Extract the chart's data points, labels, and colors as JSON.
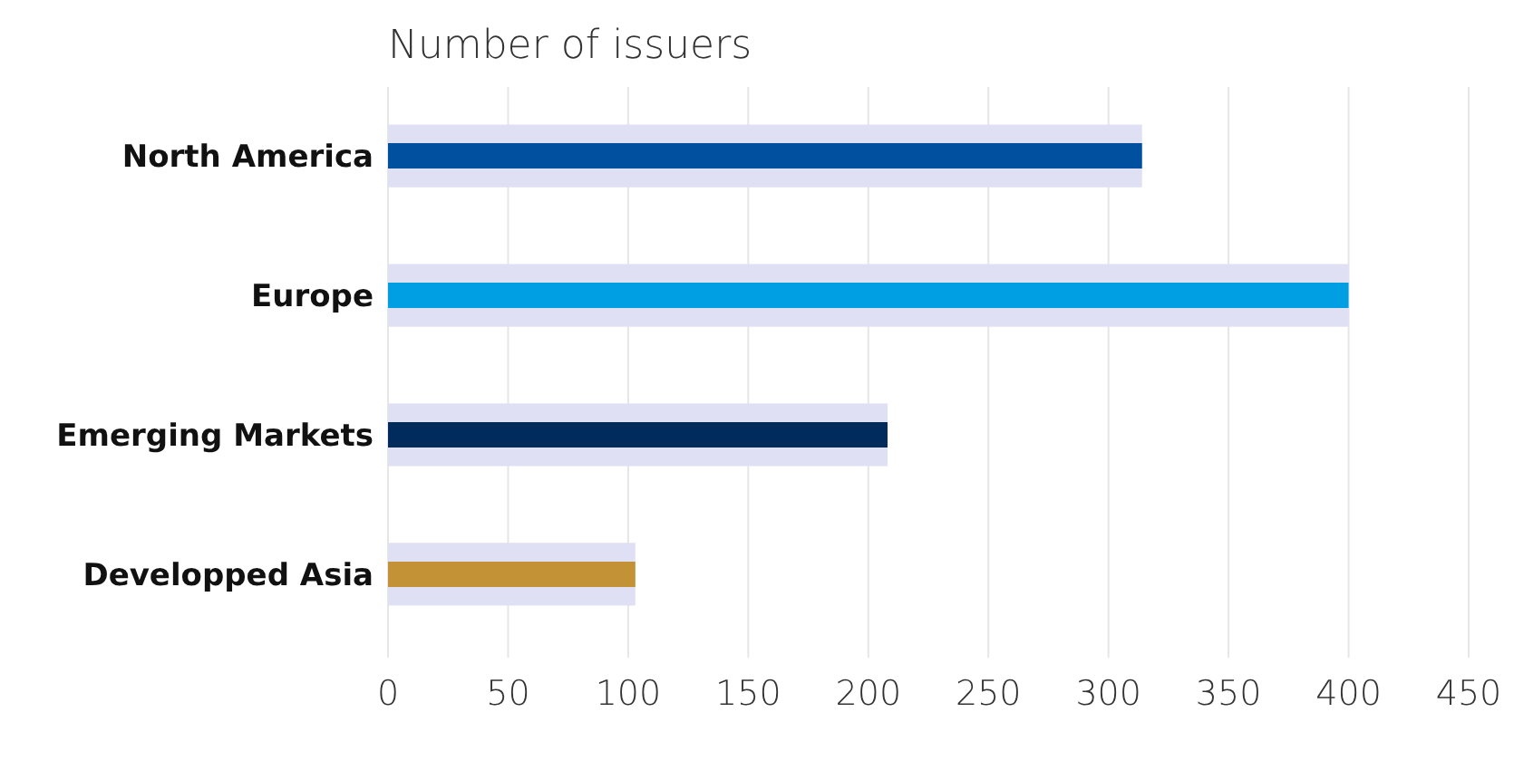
{
  "chart_data": {
    "type": "bar",
    "orientation": "horizontal",
    "title": "Number of issuers",
    "categories": [
      "North America",
      "Europe",
      "Emerging Markets",
      "Developped Asia"
    ],
    "values": [
      314,
      400,
      208,
      103
    ],
    "colors": [
      "#0050a0",
      "#009fe3",
      "#002b5c",
      "#c39237"
    ],
    "xlim": [
      0,
      450
    ],
    "xticks": [
      0,
      50,
      100,
      150,
      200,
      250,
      300,
      350,
      400,
      450
    ],
    "grid": "x"
  }
}
